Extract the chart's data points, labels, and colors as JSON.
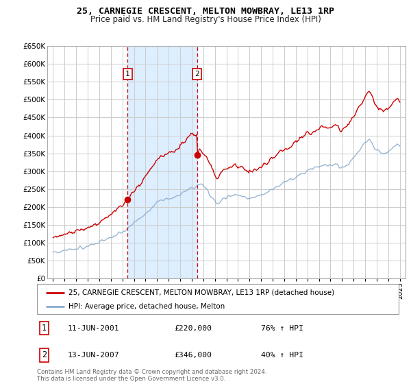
{
  "title": "25, CARNEGIE CRESCENT, MELTON MOWBRAY, LE13 1RP",
  "subtitle": "Price paid vs. HM Land Registry's House Price Index (HPI)",
  "legend_line1": "25, CARNEGIE CRESCENT, MELTON MOWBRAY, LE13 1RP (detached house)",
  "legend_line2": "HPI: Average price, detached house, Melton",
  "sale1_date_str": "11-JUN-2001",
  "sale1_price_str": "£220,000",
  "sale1_pct": "76% ↑ HPI",
  "sale1_t": 2001.458,
  "sale1_price": 220000,
  "sale2_date_str": "13-JUN-2007",
  "sale2_price_str": "£346,000",
  "sale2_pct": "40% ↑ HPI",
  "sale2_t": 2007.458,
  "sale2_price": 346000,
  "footer": "Contains HM Land Registry data © Crown copyright and database right 2024.\nThis data is licensed under the Open Government Licence v3.0.",
  "red_color": "#cc0000",
  "blue_color": "#88aacc",
  "shade_color": "#ddeeff",
  "ylim": [
    0,
    650000
  ],
  "yticks": [
    0,
    50000,
    100000,
    150000,
    200000,
    250000,
    300000,
    350000,
    400000,
    450000,
    500000,
    550000,
    600000,
    650000
  ],
  "xlim_min": 1994.5,
  "xlim_max": 2025.5,
  "grid_color": "#cccccc",
  "bg_color": "#ffffff"
}
